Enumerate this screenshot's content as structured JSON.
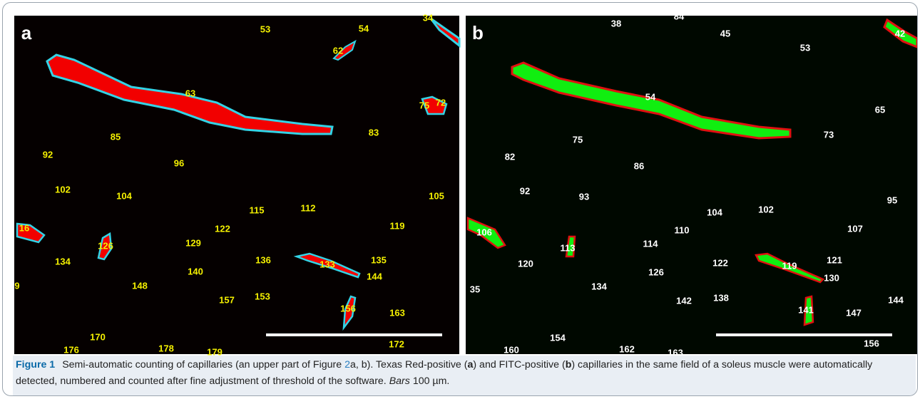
{
  "figure": {
    "panels": [
      {
        "label": "a",
        "cells": [
          "34",
          "53",
          "54",
          "62",
          "63",
          "75",
          "72",
          "85",
          "83",
          "92",
          "96",
          "102",
          "104",
          "105",
          "115",
          "112",
          "16",
          "122",
          "119",
          "126",
          "129",
          "134",
          "136",
          "133",
          "135",
          "140",
          "144",
          "148",
          "157",
          "153",
          "156",
          "163",
          "170",
          "176",
          "178",
          "179",
          "172",
          "9"
        ]
      },
      {
        "label": "b",
        "cells": [
          "38",
          "84",
          "45",
          "42",
          "53",
          "54",
          "65",
          "73",
          "75",
          "82",
          "86",
          "92",
          "93",
          "104",
          "102",
          "95",
          "106",
          "110",
          "107",
          "113",
          "114",
          "120",
          "122",
          "119",
          "121",
          "126",
          "130",
          "134",
          "35",
          "142",
          "138",
          "141",
          "147",
          "144",
          "154",
          "160",
          "162",
          "163",
          "156"
        ]
      }
    ],
    "caption": {
      "label": "Figure 1",
      "parts": [
        "Semi-automatic counting of capillaries (an upper part of Figure ",
        "2",
        "a, b). Texas Red-positive (",
        "a",
        ") and FITC-positive (",
        "b",
        ") capillaries in the same field of a soleus muscle were automatically detected, numbered and counted after fine adjustment of threshold of the software. ",
        "Bars",
        " 100 µm."
      ]
    }
  }
}
